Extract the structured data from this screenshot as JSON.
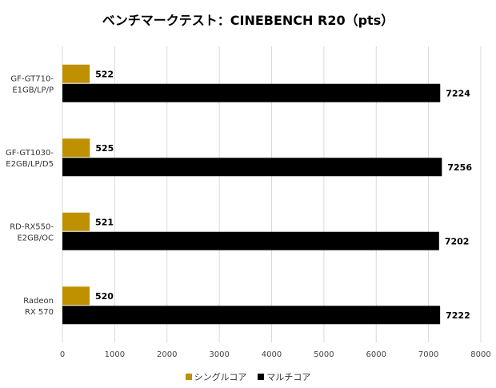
{
  "chart_data": {
    "type": "bar",
    "orientation": "horizontal",
    "title": "ベンチマークテスト：CINEBENCH R20（pts）",
    "categories": [
      [
        "GF-GT710-",
        "E1GB/LP/P"
      ],
      [
        "GF-GT1030-",
        "E2GB/LP/D5"
      ],
      [
        "RD-RX550-",
        "E2GB/OC"
      ],
      [
        "Radeon",
        "RX 570"
      ]
    ],
    "series": [
      {
        "name": "シングルコア",
        "color": "#bf9000",
        "values": [
          522,
          525,
          521,
          520
        ]
      },
      {
        "name": "マルチコア",
        "color": "#000000",
        "values": [
          7224,
          7256,
          7202,
          7222
        ]
      }
    ],
    "xlim": [
      0,
      8000
    ],
    "xticks": [
      0,
      1000,
      2000,
      3000,
      4000,
      5000,
      6000,
      7000,
      8000
    ],
    "grid": true,
    "legend_position": "bottom"
  }
}
